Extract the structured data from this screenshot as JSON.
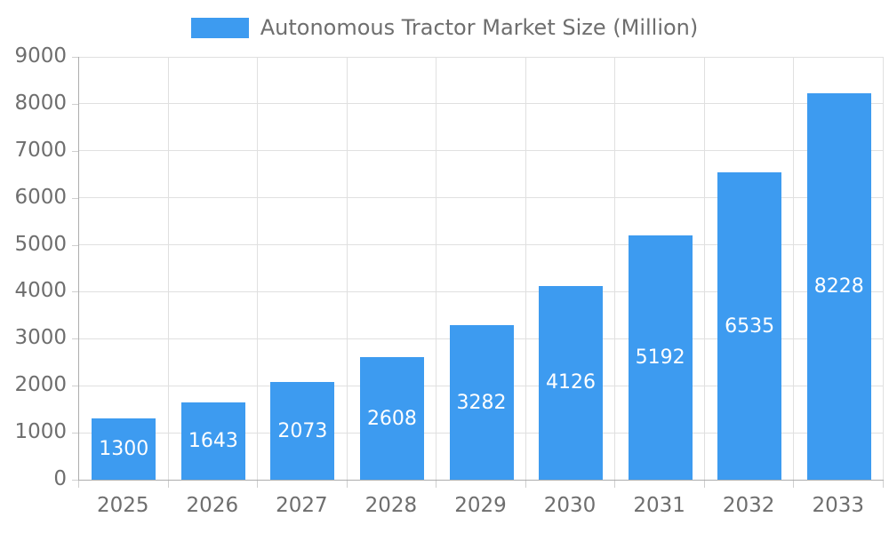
{
  "colors": {
    "bar": "#3D9BF0",
    "axis_line": "#ADADAD",
    "gridline": "#E0E0E0",
    "tick": "#CFCFCF",
    "axis_text": "#6E6E6E",
    "value_text": "#FFFFFF"
  },
  "chart_data": {
    "type": "bar",
    "series_name": "Autonomous Tractor Market Size (Million)",
    "categories": [
      "2025",
      "2026",
      "2027",
      "2028",
      "2029",
      "2030",
      "2031",
      "2032",
      "2033"
    ],
    "values": [
      1300,
      1643,
      2073,
      2608,
      3282,
      4126,
      5192,
      6535,
      8228
    ],
    "title": "",
    "xlabel": "",
    "ylabel": "",
    "ylim": [
      0,
      9000
    ],
    "yticks": [
      0,
      1000,
      2000,
      3000,
      4000,
      5000,
      6000,
      7000,
      8000,
      9000
    ],
    "grid": true,
    "legend_position": "top-center",
    "value_label_position": "inside-center"
  }
}
